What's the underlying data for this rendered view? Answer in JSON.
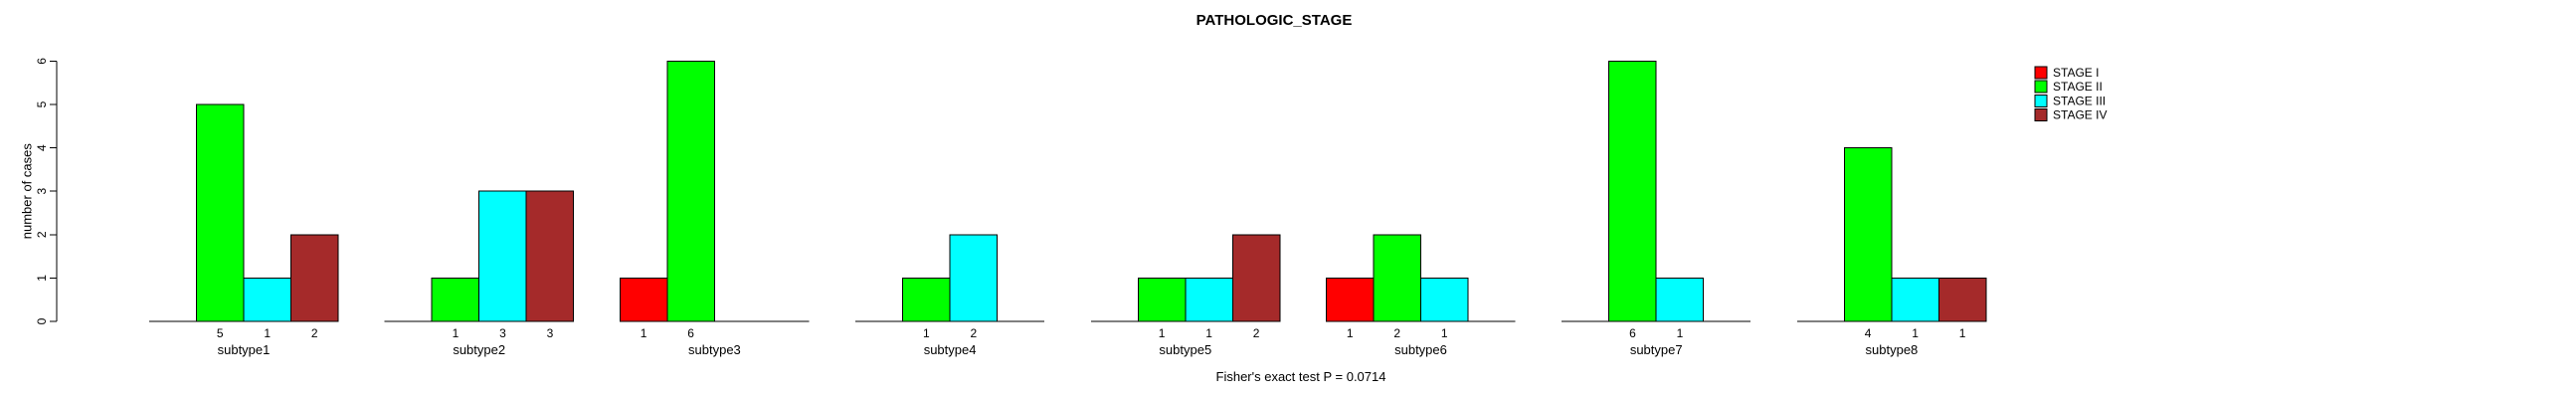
{
  "title": "PATHOLOGIC_STAGE",
  "caption": "Fisher's exact test P = 0.0714",
  "chart_data": {
    "type": "bar",
    "title": "PATHOLOGIC_STAGE",
    "xlabel": "",
    "ylabel": "number of cases",
    "ylim": [
      0,
      6
    ],
    "yticks": [
      0,
      1,
      2,
      3,
      4,
      5,
      6
    ],
    "grid": false,
    "legend_position": "top-right-outside",
    "bar_value_labels_shown": true,
    "categories": [
      "subtype1",
      "subtype2",
      "subtype3",
      "subtype4",
      "subtype5",
      "subtype6",
      "subtype7",
      "subtype8"
    ],
    "series": [
      {
        "name": "STAGE I",
        "color": "#FF0000",
        "values": [
          0,
          0,
          1,
          0,
          0,
          1,
          0,
          0
        ]
      },
      {
        "name": "STAGE II",
        "color": "#00FF00",
        "values": [
          5,
          1,
          6,
          1,
          1,
          2,
          6,
          4
        ]
      },
      {
        "name": "STAGE III",
        "color": "#00FFFF",
        "values": [
          1,
          3,
          0,
          2,
          1,
          1,
          1,
          1
        ]
      },
      {
        "name": "STAGE IV",
        "color": "#A52A2A",
        "values": [
          2,
          3,
          0,
          0,
          2,
          0,
          0,
          1
        ]
      }
    ],
    "annotation": "Fisher's exact test P = 0.0714"
  },
  "colors": {
    "axis": "#000000",
    "background": "#FFFFFF"
  }
}
